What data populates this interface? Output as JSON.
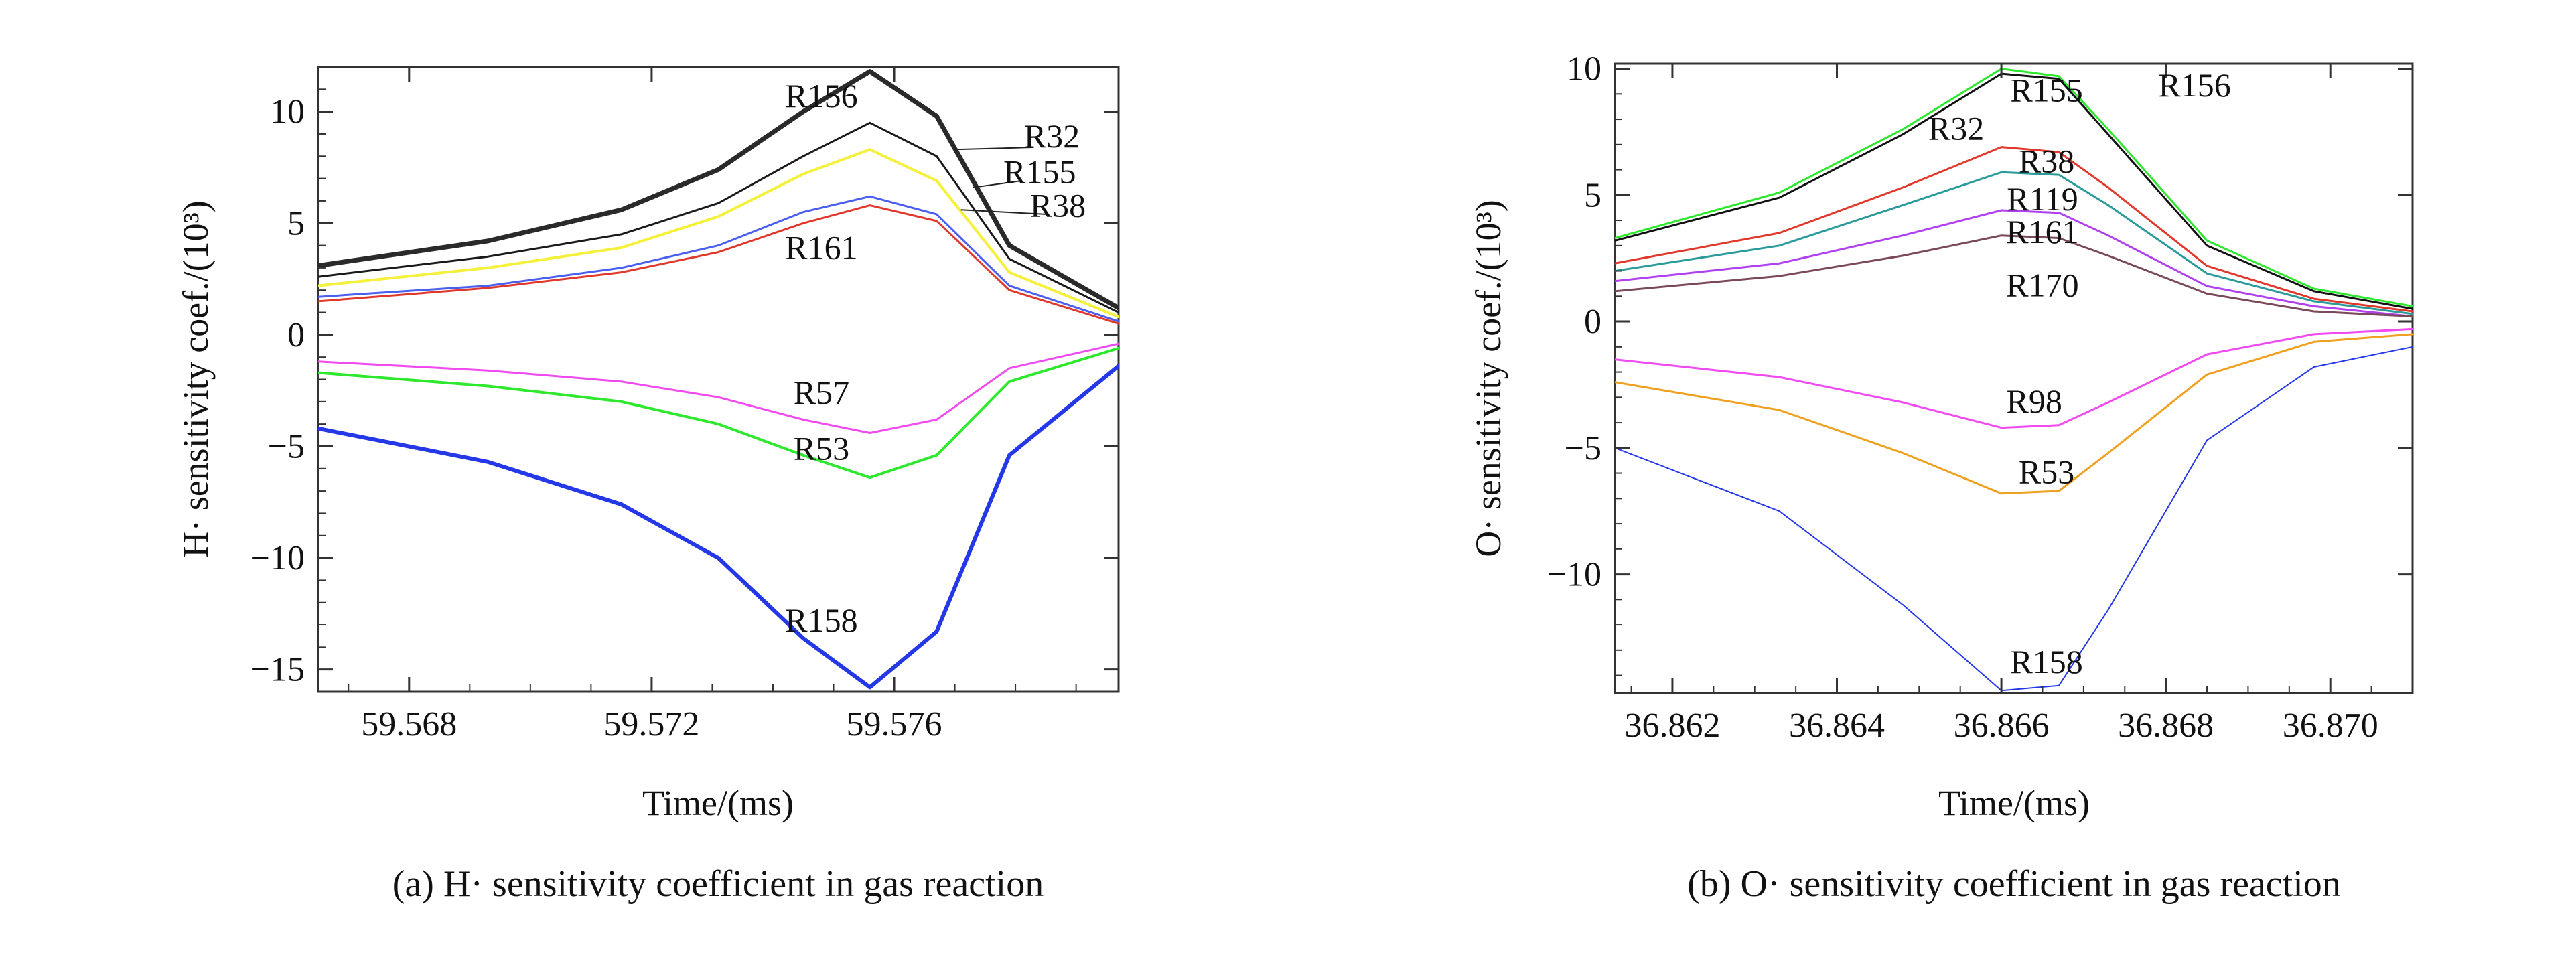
{
  "chart_data": [
    {
      "type": "line",
      "caption": "(a) H· sensitivity coefficient in gas reaction",
      "xlabel": "Time/(ms)",
      "ylabel": "H· sensitivity coef./(10³)",
      "xlim": [
        59.5665,
        59.5797
      ],
      "ylim": [
        -16,
        12
      ],
      "xticks": [
        59.568,
        59.572,
        59.576
      ],
      "xtick_labels": [
        "59.568",
        "59.572",
        "59.576"
      ],
      "yticks": [
        10,
        5,
        0,
        -5,
        -10,
        -15
      ],
      "ytick_labels": [
        "10",
        "5",
        "0",
        "−5",
        "−10",
        "−15"
      ],
      "x": [
        59.5665,
        59.5693,
        59.5715,
        59.5731,
        59.5745,
        59.5756,
        59.5767,
        59.5779,
        59.5797
      ],
      "series": [
        {
          "name": "R156",
          "color": "#2a2a2a",
          "width": 7,
          "values": [
            3.1,
            4.2,
            5.6,
            7.4,
            10.0,
            11.8,
            9.8,
            4.0,
            1.2
          ]
        },
        {
          "name": "R32",
          "color": "#1a1a1a",
          "width": 3,
          "values": [
            2.6,
            3.5,
            4.5,
            5.9,
            8.0,
            9.5,
            8.0,
            3.4,
            1.0
          ]
        },
        {
          "name": "R155",
          "color": "#f5f03a",
          "width": 4,
          "values": [
            2.2,
            3.0,
            3.9,
            5.3,
            7.2,
            8.3,
            6.9,
            2.8,
            0.8
          ]
        },
        {
          "name": "R38",
          "color": "#4a5ef0",
          "width": 3,
          "values": [
            1.7,
            2.2,
            3.0,
            4.0,
            5.5,
            6.2,
            5.4,
            2.2,
            0.6
          ]
        },
        {
          "name": "R161",
          "color": "#e0392b",
          "width": 3,
          "values": [
            1.5,
            2.1,
            2.8,
            3.7,
            5.0,
            5.8,
            5.1,
            2.0,
            0.5
          ]
        },
        {
          "name": "R57",
          "color": "#f04af0",
          "width": 3,
          "values": [
            -1.2,
            -1.6,
            -2.1,
            -2.8,
            -3.8,
            -4.4,
            -3.8,
            -1.5,
            -0.4
          ]
        },
        {
          "name": "R53",
          "color": "#2ee82e",
          "width": 4,
          "values": [
            -1.7,
            -2.3,
            -3.0,
            -4.0,
            -5.4,
            -6.4,
            -5.4,
            -2.1,
            -0.6
          ]
        },
        {
          "name": "R158",
          "color": "#2438e8",
          "width": 6,
          "values": [
            -4.2,
            -5.7,
            -7.6,
            -10.0,
            -13.6,
            -15.8,
            -13.3,
            -5.4,
            -1.4
          ]
        }
      ],
      "labels": [
        {
          "text": "R156",
          "x": 59.5748,
          "y": 10.2
        },
        {
          "text": "R32",
          "x": 59.5786,
          "y": 8.4
        },
        {
          "text": "R155",
          "x": 59.5784,
          "y": 6.8
        },
        {
          "text": "R38",
          "x": 59.5787,
          "y": 5.3
        },
        {
          "text": "R161",
          "x": 59.5748,
          "y": 3.4
        },
        {
          "text": "R57",
          "x": 59.5748,
          "y": -3.1
        },
        {
          "text": "R53",
          "x": 59.5748,
          "y": -5.6
        },
        {
          "text": "R158",
          "x": 59.5748,
          "y": -13.3
        }
      ],
      "leaders": [
        {
          "from_x": 59.577,
          "from_y": 8.3,
          "to_x": 59.5783,
          "to_y": 8.4
        },
        {
          "from_x": 59.5773,
          "from_y": 6.6,
          "to_x": 59.5781,
          "to_y": 6.9
        },
        {
          "from_x": 59.5771,
          "from_y": 5.6,
          "to_x": 59.5785,
          "to_y": 5.4
        }
      ]
    },
    {
      "type": "line",
      "caption": "(b) O· sensitivity coefficient in gas reaction",
      "xlabel": "Time/(ms)",
      "ylabel": "O· sensitivity coef./(10³)",
      "xlim": [
        36.8613,
        36.871
      ],
      "ylim": [
        -14.7,
        10.2
      ],
      "xticks": [
        36.862,
        36.864,
        36.866,
        36.868,
        36.87
      ],
      "xtick_labels": [
        "36.862",
        "36.864",
        "36.866",
        "36.868",
        "36.870"
      ],
      "yticks": [
        10,
        5,
        0,
        -5,
        -10
      ],
      "ytick_labels": [
        "10",
        "5",
        "0",
        "−5",
        "−10"
      ],
      "x": [
        36.8613,
        36.8633,
        36.8648,
        36.866,
        36.8667,
        36.8673,
        36.8685,
        36.8698,
        36.871
      ],
      "series": [
        {
          "name": "R155",
          "color": "#2ee82e",
          "width": 3,
          "values": [
            3.3,
            5.1,
            7.6,
            10.0,
            9.7,
            7.6,
            3.2,
            1.3,
            0.6
          ]
        },
        {
          "name": "R156",
          "color": "#111111",
          "width": 3,
          "values": [
            3.2,
            4.9,
            7.4,
            9.8,
            9.6,
            7.4,
            3.0,
            1.2,
            0.5
          ]
        },
        {
          "name": "R32",
          "color": "#e0392b",
          "width": 3,
          "values": [
            2.3,
            3.5,
            5.3,
            6.9,
            6.7,
            5.3,
            2.2,
            0.9,
            0.4
          ]
        },
        {
          "name": "R119",
          "color": "#2a9a9a",
          "width": 3,
          "values": [
            2.0,
            3.0,
            4.6,
            5.9,
            5.8,
            4.6,
            1.9,
            0.8,
            0.3
          ]
        },
        {
          "name": "R161",
          "color": "#b040f0",
          "width": 3,
          "values": [
            1.6,
            2.3,
            3.4,
            4.4,
            4.3,
            3.4,
            1.4,
            0.6,
            0.2
          ]
        },
        {
          "name": "R170",
          "color": "#7a4a5a",
          "width": 3,
          "values": [
            1.2,
            1.8,
            2.6,
            3.4,
            3.3,
            2.6,
            1.1,
            0.4,
            0.2
          ]
        },
        {
          "name": "R98",
          "color": "#f04af0",
          "width": 3,
          "values": [
            -1.5,
            -2.2,
            -3.2,
            -4.2,
            -4.1,
            -3.2,
            -1.3,
            -0.5,
            -0.3
          ]
        },
        {
          "name": "R53",
          "color": "#f0a020",
          "width": 3,
          "values": [
            -2.4,
            -3.5,
            -5.2,
            -6.8,
            -6.7,
            -5.2,
            -2.1,
            -0.8,
            -0.5
          ]
        },
        {
          "name": "R158",
          "color": "#2438e8",
          "width": 2,
          "values": [
            -5.0,
            -7.5,
            -11.2,
            -14.6,
            -14.4,
            -11.4,
            -4.7,
            -1.8,
            -1.0
          ]
        }
      ],
      "labels": [
        {
          "text": "R155",
          "x": 36.86655,
          "y": 8.7
        },
        {
          "text": "R156",
          "x": 36.86835,
          "y": 8.9
        },
        {
          "text": "R32",
          "x": 36.86545,
          "y": 7.2
        },
        {
          "text": "R38",
          "x": 36.86655,
          "y": 5.9
        },
        {
          "text": "R119",
          "x": 36.8665,
          "y": 4.4
        },
        {
          "text": "R161",
          "x": 36.8665,
          "y": 3.1
        },
        {
          "text": "R170",
          "x": 36.8665,
          "y": 1.0
        },
        {
          "text": "R98",
          "x": 36.8664,
          "y": -3.6
        },
        {
          "text": "R53",
          "x": 36.86655,
          "y": -6.4
        },
        {
          "text": "R158",
          "x": 36.86655,
          "y": -13.9
        }
      ],
      "leaders": []
    }
  ]
}
